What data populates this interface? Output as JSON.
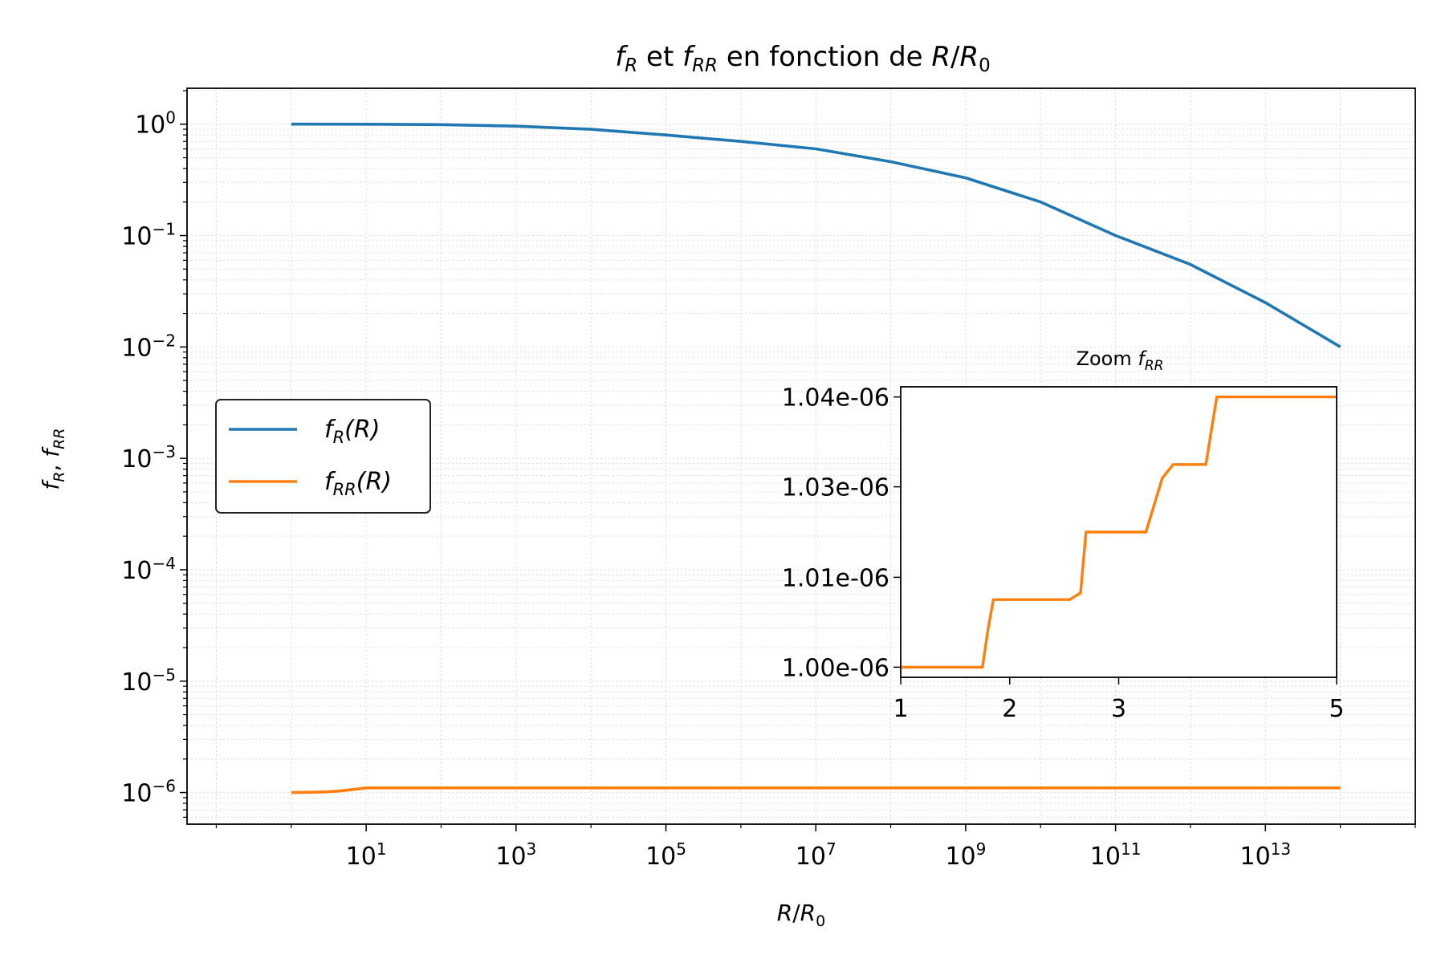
{
  "chart_data": [
    {
      "type": "line",
      "title": {
        "f1": "f",
        "s1": "R",
        "mid": " et ",
        "f2": "f",
        "s2": "RR",
        "tail": " en fonction de ",
        "r": "R",
        "slash": "/",
        "r0": "R",
        "s0": "0"
      },
      "xlabel": {
        "r": "R",
        "slash": "/",
        "r0": "R",
        "sub": "0"
      },
      "ylabel": {
        "f1": "f",
        "s1": "R",
        "sep": ", ",
        "f2": "f",
        "s2": "RR"
      },
      "x_scale": "log",
      "y_scale": "log",
      "xlim": [
        0.0407,
        1000000000000000.0
      ],
      "ylim": [
        5.2e-07,
        2.1
      ],
      "x_ticks": [
        {
          "value": 10,
          "base": "10",
          "exp": "1"
        },
        {
          "value": 1000,
          "base": "10",
          "exp": "3"
        },
        {
          "value": 100000,
          "base": "10",
          "exp": "5"
        },
        {
          "value": 10000000,
          "base": "10",
          "exp": "7"
        },
        {
          "value": 1000000000,
          "base": "10",
          "exp": "9"
        },
        {
          "value": 100000000000,
          "base": "10",
          "exp": "11"
        },
        {
          "value": 10000000000000,
          "base": "10",
          "exp": "13"
        }
      ],
      "y_ticks": [
        {
          "value": 1,
          "base": "10",
          "exp": "0"
        },
        {
          "value": 0.1,
          "base": "10",
          "exp": "−1"
        },
        {
          "value": 0.01,
          "base": "10",
          "exp": "−2"
        },
        {
          "value": 0.001,
          "base": "10",
          "exp": "−3"
        },
        {
          "value": 0.0001,
          "base": "10",
          "exp": "−4"
        },
        {
          "value": 1e-05,
          "base": "10",
          "exp": "−5"
        },
        {
          "value": 1e-06,
          "base": "10",
          "exp": "−6"
        }
      ],
      "grid": true,
      "legend_position": "center-left",
      "series": [
        {
          "name": {
            "f": "f",
            "sub": "R",
            "arg": "(R)"
          },
          "color": "#1f77b4",
          "x": [
            1,
            10,
            100,
            1000,
            10000,
            100000,
            1000000,
            10000000,
            100000000,
            1000000000,
            10000000000,
            100000000000,
            1000000000000,
            10000000000000,
            100000000000000
          ],
          "y": [
            1.0,
            0.998,
            0.99,
            0.96,
            0.9,
            0.8,
            0.7,
            0.6,
            0.46,
            0.33,
            0.2,
            0.1,
            0.055,
            0.025,
            0.01
          ]
        },
        {
          "name": {
            "f": "f",
            "sub": "RR",
            "arg": "(R)"
          },
          "color": "#ff7f0e",
          "x": [
            1,
            2,
            3,
            4,
            5,
            10,
            100,
            100000000000000
          ],
          "y": [
            1e-06,
            1.007e-06,
            1.015e-06,
            1.028e-06,
            1.04e-06,
            1.1e-06,
            1.1e-06,
            1.1e-06
          ]
        }
      ]
    },
    {
      "type": "line",
      "title": {
        "text": "Zoom ",
        "f": "f",
        "sub": "RR"
      },
      "x_scale": "linear",
      "y_scale": "linear",
      "xlim": [
        1,
        5
      ],
      "ylim": [
        9.985e-07,
        1.0415e-06
      ],
      "x_ticks": [
        {
          "value": 1,
          "label": "1"
        },
        {
          "value": 2,
          "label": "2"
        },
        {
          "value": 3,
          "label": "3"
        },
        {
          "value": 5,
          "label": "5"
        }
      ],
      "y_ticks": [
        {
          "value": 1e-06,
          "label": "1.00e-06"
        },
        {
          "value": 1.0133e-06,
          "label": "1.01e-06"
        },
        {
          "value": 1.0267e-06,
          "label": "1.03e-06"
        },
        {
          "value": 1.04e-06,
          "label": "1.04e-06"
        }
      ],
      "grid": false,
      "series": [
        {
          "color": "#ff7f0e",
          "x": [
            1,
            1.75,
            1.8,
            1.85,
            2.55,
            2.65,
            2.7,
            3.25,
            3.4,
            3.5,
            3.8,
            3.9,
            4.5,
            5
          ],
          "y": [
            1e-06,
            1e-06,
            1.0055e-06,
            1.01e-06,
            1.01e-06,
            1.011e-06,
            1.02e-06,
            1.02e-06,
            1.028e-06,
            1.03e-06,
            1.03e-06,
            1.04e-06,
            1.04e-06,
            1.04e-06
          ]
        }
      ]
    }
  ]
}
